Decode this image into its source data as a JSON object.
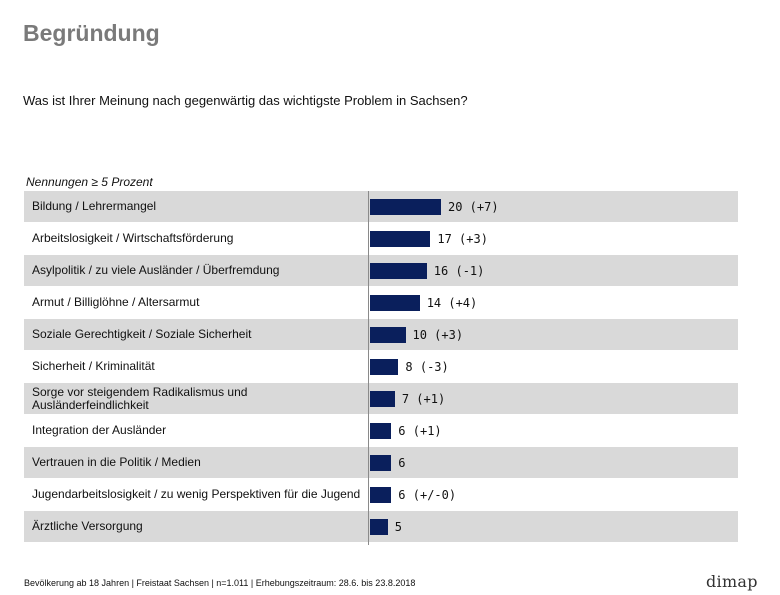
{
  "header": {
    "title": "Begründung",
    "question": "Was ist Ihrer Meinung nach gegenwärtig das wichtigste Problem in Sachsen?",
    "note": "Nennungen ≥ 5 Prozent"
  },
  "chart_data": {
    "type": "bar",
    "orientation": "horizontal",
    "categories": [
      "Bildung / Lehrermangel",
      "Arbeitslosigkeit / Wirtschaftsförderung",
      "Asylpolitik / zu viele Ausländer / Überfremdung",
      "Armut / Billiglöhne / Altersarmut",
      "Soziale Gerechtigkeit / Soziale Sicherheit",
      "Sicherheit / Kriminalität",
      "Sorge vor steigendem Radikalismus und Ausländerfeindlichkeit",
      "Integration der Ausländer",
      "Vertrauen in die Politik / Medien",
      "Jugendarbeitslosigkeit / zu wenig Perspektiven für die Jugend",
      "Ärztliche Versorgung"
    ],
    "values": [
      20,
      17,
      16,
      14,
      10,
      8,
      7,
      6,
      6,
      6,
      5
    ],
    "changes": [
      "(+7)",
      "(+3)",
      "(-1)",
      "(+4)",
      "(+3)",
      "(-3)",
      "(+1)",
      "(+1)",
      "",
      "(+/-0)",
      ""
    ],
    "colors": {
      "bar": "#0a1f5c",
      "row_shade": "#d9d9d9"
    },
    "grid": false,
    "legend": "none"
  },
  "footer": {
    "text": "Bevölkerung ab 18 Jahren | Freistaat Sachsen | n=1.011 | Erhebungszeitraum: 28.6. bis 23.8.2018"
  },
  "logo": {
    "text": "dimap"
  }
}
